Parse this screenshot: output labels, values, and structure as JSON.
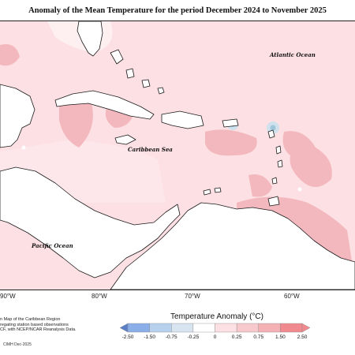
{
  "title": "Anomaly of the Mean Temperature for the period December 2024 to November 2025",
  "map": {
    "labels": {
      "atlantic": "Atlantic Ocean",
      "caribbean": "Caribbean Sea",
      "pacific": "Pacific Ocean"
    },
    "longitudes": [
      "90°W",
      "80°W",
      "70°W",
      "60°W"
    ],
    "colors": {
      "ocean": "#fde0e3",
      "land": "#ffffff",
      "coast": "#1a1a1a",
      "warm_light": "#fef0f1",
      "warm_mid": "#f3b8bd",
      "cool": "#9fc5da"
    }
  },
  "credits": [
    "n Map of the Caribbean Region",
    "regating station based observations",
    "CF, with NCEP/NCAR Reanalysis Data."
  ],
  "copyright": "CIMH Dec-2025",
  "legend": {
    "title": "Temperature Anomaly (°C)",
    "ticks": [
      "-2.50",
      "-1.50",
      "-0.75",
      "-0.25",
      "0",
      "0.25",
      "0.75",
      "1.50",
      "2.50"
    ],
    "colors": [
      "#5b7fc6",
      "#8aaee8",
      "#b7d0ee",
      "#d8e5f1",
      "#ffffff",
      "#fde0e3",
      "#f7c8cc",
      "#f3b0b5",
      "#f08a8f"
    ]
  }
}
